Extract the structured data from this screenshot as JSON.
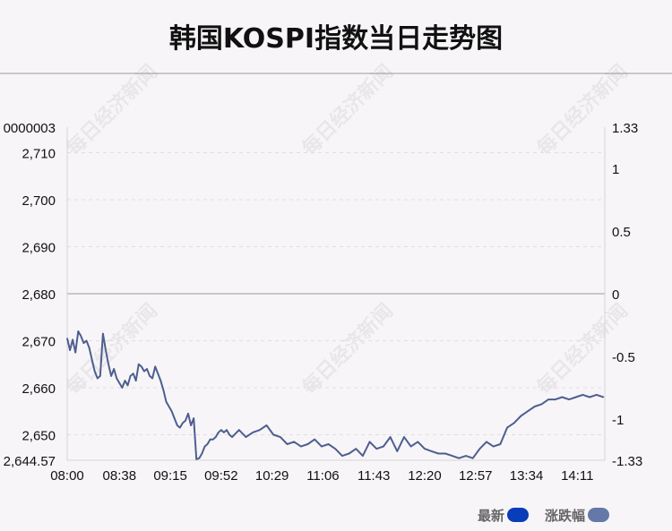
{
  "title": "韩国KOSPI指数当日走势图",
  "watermark": "每日经济新闻",
  "legend": {
    "items": [
      {
        "label": "最新",
        "color": "#0a3db8"
      },
      {
        "label": "涨跌幅",
        "color": "#6479a8"
      }
    ]
  },
  "colors": {
    "line": "#4d5f8f",
    "zero_line": "#c8c8c8",
    "grid": "#e2dde2"
  },
  "chart_data": {
    "type": "line",
    "title": "韩国KOSPI指数当日走势图",
    "xlabel": "",
    "ylabel": "",
    "grid": true,
    "legend_position": "bottom-right",
    "x_ticks": [
      "08:00",
      "08:38",
      "09:15",
      "09:52",
      "10:29",
      "11:06",
      "11:43",
      "12:20",
      "12:57",
      "13:34",
      "14:11"
    ],
    "y_left_ticks": [
      "2,644.57",
      "2,650",
      "2,660",
      "2,670",
      "2,680",
      "2,690",
      "2,700",
      "2,710",
      "0000003"
    ],
    "y_left_tick_values": [
      2644.57,
      2650,
      2660,
      2670,
      2680,
      2690,
      2700,
      2710,
      2715.43
    ],
    "y_right_ticks": [
      "-1.33",
      "-1",
      "-0.5",
      "0",
      "0.5",
      "1",
      "1.33"
    ],
    "y_right_tick_values": [
      -1.33,
      -1,
      -0.5,
      0,
      0.5,
      1,
      1.33
    ],
    "ylim_left": [
      2644.57,
      2715.43
    ],
    "ylim_right": [
      -1.33,
      1.33
    ],
    "baseline": 2680,
    "series": [
      {
        "name": "最新",
        "x_minutes": [
          0,
          2,
          4,
          6,
          8,
          10,
          12,
          14,
          16,
          18,
          20,
          22,
          24,
          26,
          28,
          30,
          32,
          34,
          36,
          38,
          40,
          42,
          44,
          46,
          48,
          50,
          52,
          54,
          56,
          58,
          60,
          62,
          64,
          66,
          68,
          70,
          72,
          74,
          76,
          78,
          80,
          82,
          84,
          86,
          88,
          90,
          92,
          94,
          96,
          98,
          100,
          102,
          104,
          106,
          108,
          110,
          112,
          114,
          116,
          118,
          120,
          125,
          130,
          135,
          140,
          145,
          150,
          155,
          160,
          165,
          170,
          175,
          180,
          185,
          190,
          195,
          200,
          205,
          210,
          215,
          220,
          225,
          230,
          235,
          240,
          245,
          250,
          255,
          260,
          265,
          270,
          275,
          280,
          285,
          290,
          295,
          300,
          305,
          310,
          315,
          320,
          325,
          330,
          335,
          340,
          345,
          350,
          355,
          360,
          365,
          370,
          375,
          380,
          385,
          390
        ],
        "values": [
          2670.5,
          2668.0,
          2670.2,
          2667.5,
          2672.0,
          2671.0,
          2669.5,
          2670.0,
          2668.5,
          2666.0,
          2663.5,
          2662.0,
          2662.5,
          2671.5,
          2668.0,
          2665.0,
          2662.5,
          2664.0,
          2662.0,
          2661.0,
          2660.0,
          2661.5,
          2660.5,
          2662.5,
          2663.0,
          2661.5,
          2665.0,
          2664.5,
          2663.5,
          2664.0,
          2662.5,
          2662.0,
          2664.5,
          2663.0,
          2661.5,
          2659.5,
          2657.0,
          2656.0,
          2655.0,
          2653.5,
          2652.0,
          2651.5,
          2652.5,
          2653.0,
          2654.5,
          2652.0,
          2653.5,
          2644.8,
          2645.0,
          2646.0,
          2647.5,
          2648.0,
          2649.0,
          2649.0,
          2649.5,
          2650.5,
          2651.0,
          2650.5,
          2651.0,
          2650.0,
          2649.5,
          2651.0,
          2649.5,
          2650.5,
          2651.0,
          2652.0,
          2650.0,
          2649.5,
          2648.0,
          2648.5,
          2647.5,
          2648.0,
          2649.0,
          2647.5,
          2648.0,
          2647.0,
          2645.5,
          2646.0,
          2647.0,
          2645.5,
          2648.5,
          2647.0,
          2647.5,
          2649.5,
          2646.5,
          2649.5,
          2647.5,
          2648.5,
          2647.0,
          2646.5,
          2646.0,
          2646.0,
          2645.5,
          2645.0,
          2645.5,
          2645.0,
          2647.0,
          2648.5,
          2647.5,
          2648.0,
          2651.5,
          2652.5,
          2654.0,
          2655.0,
          2656.0,
          2656.5,
          2657.5,
          2657.5,
          2658.0,
          2657.5,
          2658.0,
          2658.5,
          2658.0,
          2658.5,
          2658.0
        ]
      }
    ]
  }
}
